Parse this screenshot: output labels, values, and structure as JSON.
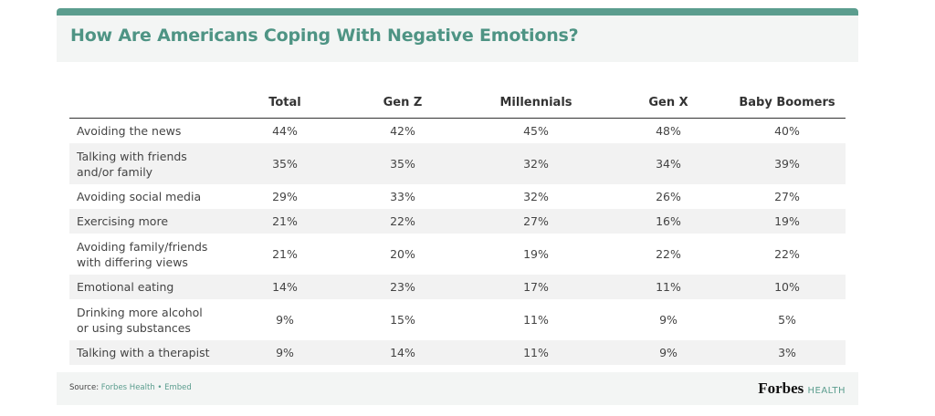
{
  "title": "How Are Americans Coping With Negative Emotions?",
  "table": {
    "header": [
      "Total",
      "Gen Z",
      "Millennials",
      "Gen X",
      "Baby Boomers"
    ],
    "rows": [
      [
        "Avoiding the news",
        "44%",
        "42%",
        "45%",
        "48%",
        "40%"
      ],
      [
        "Talking with friends and/or family",
        "35%",
        "35%",
        "32%",
        "34%",
        "39%"
      ],
      [
        "Avoiding social media",
        "29%",
        "33%",
        "32%",
        "26%",
        "27%"
      ],
      [
        "Exercising more",
        "21%",
        "22%",
        "27%",
        "16%",
        "19%"
      ],
      [
        "Avoiding family/friends with differing views",
        "21%",
        "20%",
        "19%",
        "22%",
        "22%"
      ],
      [
        "Emotional eating",
        "14%",
        "23%",
        "17%",
        "11%",
        "10%"
      ],
      [
        "Drinking more alcohol or using substances",
        "9%",
        "15%",
        "11%",
        "9%",
        "5%"
      ],
      [
        "Talking with a therapist",
        "9%",
        "14%",
        "11%",
        "9%",
        "3%"
      ]
    ]
  },
  "footer": {
    "source_label": "Source:",
    "source_link": "Forbes Health",
    "separator": "•",
    "embed": "Embed",
    "logo": "Forbes",
    "logo_suffix": "HEALTH"
  }
}
